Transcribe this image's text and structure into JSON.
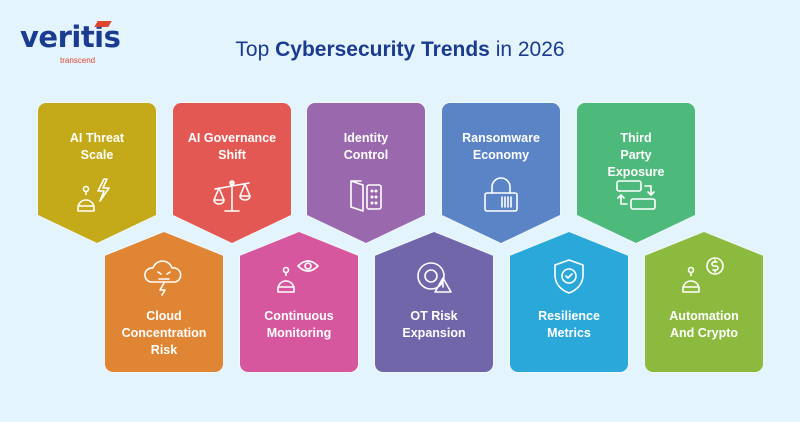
{
  "logo": {
    "name": "veritis",
    "tagline": "transcend"
  },
  "title": {
    "prefix": "Top ",
    "bold": "Cybersecurity Trends",
    "suffix": " in 2026"
  },
  "top_row": [
    {
      "l1": "AI Threat",
      "l2": "Scale",
      "color": "#c4aa18",
      "icon": "robot-lightning-icon"
    },
    {
      "l1": "AI Governance",
      "l2": "Shift",
      "color": "#e35853",
      "icon": "scales-icon"
    },
    {
      "l1": "Identity",
      "l2": "Control",
      "color": "#9a68ad",
      "icon": "door-keypad-icon"
    },
    {
      "l1": "Ransomware",
      "l2": "Economy",
      "color": "#5b84c6",
      "icon": "lock-barcode-icon"
    },
    {
      "l1": "Third",
      "l2": "Party",
      "l3": "Exposure",
      "color": "#4dba7b",
      "icon": "exchange-icon"
    }
  ],
  "bottom_row": [
    {
      "l1": "Cloud",
      "l2": "Concentration",
      "l3": "Risk",
      "color": "#e08533",
      "icon": "angry-cloud-icon"
    },
    {
      "l1": "Continuous",
      "l2": "Monitoring",
      "color": "#d6579e",
      "icon": "robot-eye-icon"
    },
    {
      "l1": "OT Risk",
      "l2": "Expansion",
      "color": "#7266ab",
      "icon": "gear-warning-icon"
    },
    {
      "l1": "Resilience",
      "l2": "Metrics",
      "color": "#2aa8da",
      "icon": "shield-check-icon"
    },
    {
      "l1": "Automation",
      "l2": "And Crypto",
      "color": "#8cba3f",
      "icon": "robot-dollar-icon"
    }
  ]
}
